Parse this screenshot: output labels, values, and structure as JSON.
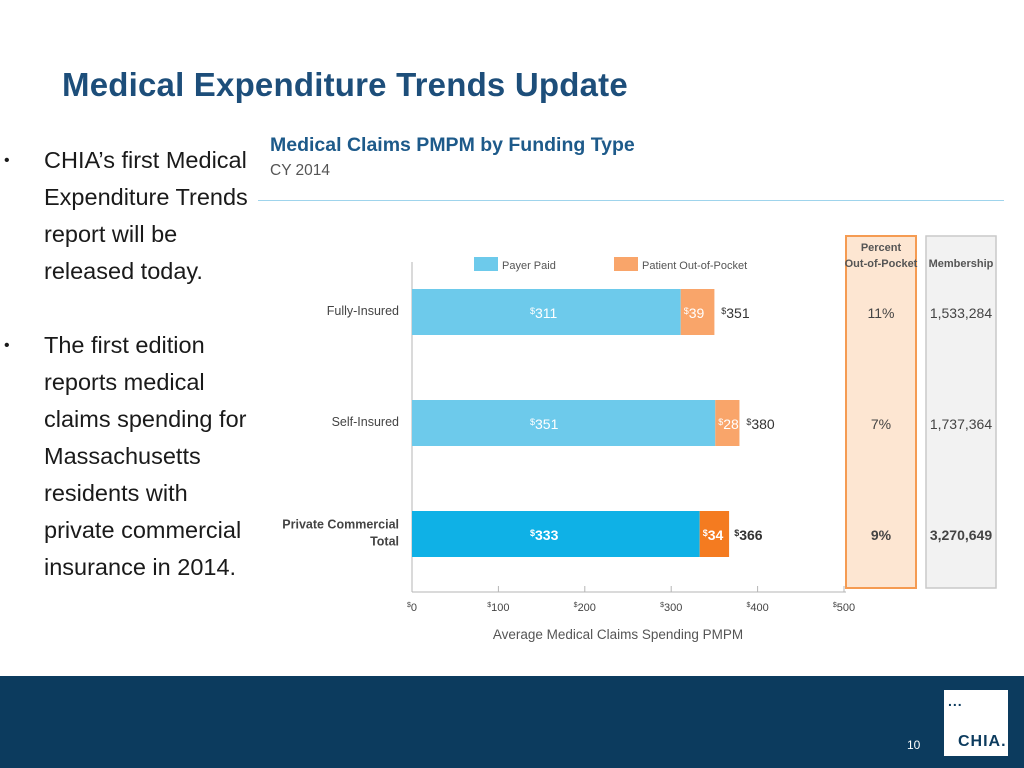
{
  "slide": {
    "title": "Medical Expenditure Trends Update",
    "page_number": "10",
    "logo_text": "CHIA.",
    "logo_dots": "..."
  },
  "bullets": [
    {
      "marker": "•",
      "text": "CHIA’s first Medical Expenditure Trends report will be released today."
    },
    {
      "marker": "•",
      "text": "The first edition reports medical claims spending for Massachusetts residents with private commercial insurance in 2014."
    }
  ],
  "chart_data": {
    "type": "bar",
    "orientation": "horizontal",
    "stacked": true,
    "title": "Medical Claims PMPM by Funding Type",
    "subtitle": "CY 2014",
    "categories": [
      "Fully-Insured",
      "Self-Insured",
      "Private Commercial Total"
    ],
    "series": [
      {
        "name": "Payer Paid",
        "values": [
          311,
          351,
          333
        ],
        "colors": [
          "#6dcaeb",
          "#6dcaeb",
          "#0fb1e6"
        ]
      },
      {
        "name": "Patient Out-of-Pocket",
        "values": [
          39,
          28,
          34
        ],
        "colors": [
          "#f9a56a",
          "#f9a56a",
          "#f47b20"
        ]
      }
    ],
    "totals": [
      351,
      380,
      366
    ],
    "highlight_row": 2,
    "xlabel": "Average Medical Claims Spending PMPM",
    "xlim": [
      0,
      500
    ],
    "xticks": [
      0,
      100,
      200,
      300,
      400,
      500
    ],
    "currency_symbol": "$",
    "legend_position": "top",
    "side_columns": [
      {
        "header": [
          "Percent",
          "Out-of-Pocket"
        ],
        "values": [
          "11%",
          "7%",
          "9%"
        ],
        "style": "highlight"
      },
      {
        "header": [
          "Membership"
        ],
        "values": [
          "1,533,284",
          "1,737,364",
          "3,270,649"
        ],
        "style": "plain"
      }
    ]
  }
}
